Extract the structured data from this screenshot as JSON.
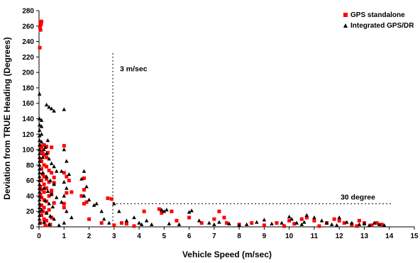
{
  "chart_data": {
    "type": "scatter",
    "xlabel": "Vehicle Speed (m/sec)",
    "ylabel": "Deviation from TRUE Heading (Degrees)",
    "xlim": [
      0,
      15
    ],
    "ylim": [
      0,
      280
    ],
    "xticks": [
      0,
      1,
      2,
      3,
      4,
      5,
      6,
      7,
      8,
      9,
      10,
      11,
      12,
      13,
      14,
      15
    ],
    "yticks": [
      0,
      20,
      40,
      60,
      80,
      100,
      120,
      140,
      160,
      180,
      200,
      220,
      240,
      260,
      280
    ],
    "grid": false,
    "legend_position": "top-right",
    "annotations": [
      {
        "text": "3 m/sec",
        "type": "vertical-line",
        "x": 2.95,
        "y_top": 225
      },
      {
        "text": "30 degree",
        "type": "horizontal-line",
        "y": 30,
        "x_start": 2.95,
        "x_end": 14.1
      }
    ],
    "series": [
      {
        "name": "GPS standalone",
        "marker": "square",
        "color": "#ff0000",
        "points": [
          [
            0.05,
            265
          ],
          [
            0.1,
            266
          ],
          [
            0.08,
            262
          ],
          [
            0.04,
            258
          ],
          [
            0.06,
            255
          ],
          [
            0.03,
            232
          ],
          [
            0.05,
            105
          ],
          [
            0.1,
            103
          ],
          [
            0.2,
            106
          ],
          [
            0.3,
            104
          ],
          [
            0.5,
            103
          ],
          [
            1.0,
            105
          ],
          [
            0.1,
            98
          ],
          [
            0.15,
            95
          ],
          [
            0.2,
            93
          ],
          [
            0.3,
            90
          ],
          [
            0.05,
            88
          ],
          [
            0.1,
            85
          ],
          [
            0.2,
            80
          ],
          [
            0.3,
            78
          ],
          [
            0.1,
            75
          ],
          [
            0.4,
            73
          ],
          [
            0.5,
            70
          ],
          [
            0.15,
            68
          ],
          [
            0.2,
            65
          ],
          [
            0.6,
            64
          ],
          [
            0.3,
            62
          ],
          [
            0.1,
            60
          ],
          [
            0.4,
            58
          ],
          [
            0.2,
            55
          ],
          [
            0.05,
            52
          ],
          [
            0.3,
            50
          ],
          [
            0.1,
            48
          ],
          [
            0.2,
            45
          ],
          [
            0.5,
            47
          ],
          [
            0.05,
            42
          ],
          [
            0.4,
            40
          ],
          [
            0.1,
            38
          ],
          [
            0.2,
            35
          ],
          [
            0.3,
            33
          ],
          [
            0.6,
            31
          ],
          [
            0.1,
            28
          ],
          [
            0.2,
            25
          ],
          [
            0.4,
            22
          ],
          [
            0.15,
            20
          ],
          [
            0.3,
            18
          ],
          [
            0.1,
            15
          ],
          [
            0.5,
            12
          ],
          [
            0.2,
            10
          ],
          [
            0.3,
            8
          ],
          [
            0.05,
            5
          ],
          [
            0.6,
            57
          ],
          [
            0.5,
            43
          ],
          [
            0.35,
            96
          ],
          [
            1.0,
            70
          ],
          [
            1.1,
            65
          ],
          [
            1.2,
            60
          ],
          [
            1.3,
            45
          ],
          [
            1.1,
            44
          ],
          [
            1.0,
            30
          ],
          [
            1.8,
            63
          ],
          [
            1.8,
            48
          ],
          [
            1.7,
            40
          ],
          [
            1.9,
            32
          ],
          [
            1.8,
            30
          ],
          [
            1.0,
            25
          ],
          [
            2.75,
            37
          ],
          [
            2.9,
            36
          ],
          [
            2.0,
            10
          ],
          [
            2.5,
            5
          ],
          [
            3.3,
            5
          ],
          [
            3.5,
            4
          ],
          [
            4.2,
            20
          ],
          [
            4.8,
            23
          ],
          [
            4.9,
            18
          ],
          [
            5.3,
            20
          ],
          [
            5.5,
            8
          ],
          [
            6.0,
            12
          ],
          [
            6.5,
            5
          ],
          [
            7.0,
            10
          ],
          [
            7.2,
            20
          ],
          [
            7.4,
            12
          ],
          [
            7.5,
            5
          ],
          [
            8.0,
            3
          ],
          [
            8.5,
            5
          ],
          [
            9.0,
            2
          ],
          [
            9.5,
            5
          ],
          [
            10.0,
            8
          ],
          [
            10.5,
            10
          ],
          [
            10.7,
            12
          ],
          [
            11.0,
            8
          ],
          [
            11.5,
            5
          ],
          [
            11.8,
            10
          ],
          [
            12.0,
            8
          ],
          [
            12.2,
            5
          ],
          [
            12.5,
            3
          ],
          [
            12.8,
            8
          ],
          [
            13.0,
            5
          ],
          [
            13.3,
            2
          ],
          [
            13.5,
            5
          ],
          [
            13.7,
            3
          ],
          [
            0.25,
            2
          ],
          [
            0.45,
            3
          ],
          [
            3.0,
            2
          ],
          [
            3.8,
            1
          ],
          [
            9.8,
            1
          ],
          [
            11.2,
            1
          ],
          [
            12.7,
            1
          ],
          [
            10.2,
            4
          ]
        ]
      },
      {
        "name": "Integrated GPS/DR",
        "marker": "triangle",
        "color": "#000000",
        "points": [
          [
            0.02,
            172
          ],
          [
            0.3,
            158
          ],
          [
            0.4,
            155
          ],
          [
            0.5,
            153
          ],
          [
            0.6,
            150
          ],
          [
            1.0,
            152
          ],
          [
            0.02,
            140
          ],
          [
            0.02,
            132
          ],
          [
            0.02,
            125
          ],
          [
            0.02,
            118
          ],
          [
            0.02,
            112
          ],
          [
            0.02,
            106
          ],
          [
            0.02,
            100
          ],
          [
            0.02,
            95
          ],
          [
            0.02,
            90
          ],
          [
            0.02,
            85
          ],
          [
            0.02,
            80
          ],
          [
            0.02,
            75
          ],
          [
            0.02,
            70
          ],
          [
            0.02,
            65
          ],
          [
            0.02,
            60
          ],
          [
            0.02,
            55
          ],
          [
            0.02,
            50
          ],
          [
            0.02,
            45
          ],
          [
            0.02,
            40
          ],
          [
            0.02,
            35
          ],
          [
            0.02,
            30
          ],
          [
            0.02,
            25
          ],
          [
            0.02,
            20
          ],
          [
            0.02,
            15
          ],
          [
            0.02,
            10
          ],
          [
            0.02,
            5
          ],
          [
            0.1,
            138
          ],
          [
            0.1,
            130
          ],
          [
            0.1,
            120
          ],
          [
            0.1,
            110
          ],
          [
            0.2,
            100
          ],
          [
            0.3,
            95
          ],
          [
            0.4,
            88
          ],
          [
            0.5,
            82
          ],
          [
            0.6,
            78
          ],
          [
            0.7,
            72
          ],
          [
            0.15,
            70
          ],
          [
            0.3,
            65
          ],
          [
            0.45,
            60
          ],
          [
            0.6,
            55
          ],
          [
            0.2,
            50
          ],
          [
            0.35,
            46
          ],
          [
            0.5,
            42
          ],
          [
            0.7,
            38
          ],
          [
            0.25,
            34
          ],
          [
            0.4,
            30
          ],
          [
            0.55,
            26
          ],
          [
            0.1,
            22
          ],
          [
            0.3,
            18
          ],
          [
            0.45,
            14
          ],
          [
            0.6,
            10
          ],
          [
            0.2,
            6
          ],
          [
            0.4,
            3
          ],
          [
            0.8,
            2
          ],
          [
            1.0,
            100
          ],
          [
            1.1,
            85
          ],
          [
            0.9,
            72
          ],
          [
            1.2,
            68
          ],
          [
            1.0,
            58
          ],
          [
            1.1,
            50
          ],
          [
            1.0,
            40
          ],
          [
            0.9,
            32
          ],
          [
            1.1,
            20
          ],
          [
            1.3,
            12
          ],
          [
            1.0,
            5
          ],
          [
            1.8,
            72
          ],
          [
            1.7,
            62
          ],
          [
            1.9,
            52
          ],
          [
            1.8,
            40
          ],
          [
            2.0,
            35
          ],
          [
            2.2,
            28
          ],
          [
            2.3,
            30
          ],
          [
            2.5,
            20
          ],
          [
            2.6,
            10
          ],
          [
            2.8,
            5
          ],
          [
            3.0,
            30
          ],
          [
            3.2,
            20
          ],
          [
            3.5,
            8
          ],
          [
            3.8,
            12
          ],
          [
            4.0,
            5
          ],
          [
            4.1,
            3
          ],
          [
            4.3,
            8
          ],
          [
            4.5,
            3
          ],
          [
            4.9,
            22
          ],
          [
            5.0,
            20
          ],
          [
            5.1,
            22
          ],
          [
            5.2,
            4
          ],
          [
            5.6,
            3
          ],
          [
            6.0,
            19
          ],
          [
            6.1,
            21
          ],
          [
            6.4,
            8
          ],
          [
            6.8,
            5
          ],
          [
            7.0,
            3
          ],
          [
            7.2,
            6
          ],
          [
            7.6,
            4
          ],
          [
            8.0,
            2
          ],
          [
            8.3,
            3
          ],
          [
            8.7,
            6
          ],
          [
            9.0,
            9
          ],
          [
            9.3,
            4
          ],
          [
            9.7,
            5
          ],
          [
            10.0,
            13
          ],
          [
            10.1,
            10
          ],
          [
            10.3,
            5
          ],
          [
            10.5,
            3
          ],
          [
            10.6,
            6
          ],
          [
            10.7,
            15
          ],
          [
            11.0,
            12
          ],
          [
            11.3,
            8
          ],
          [
            11.5,
            5
          ],
          [
            11.7,
            3
          ],
          [
            11.9,
            2
          ],
          [
            12.0,
            12
          ],
          [
            12.3,
            6
          ],
          [
            12.5,
            5
          ],
          [
            12.8,
            3
          ],
          [
            13.0,
            4
          ],
          [
            13.2,
            2
          ],
          [
            13.4,
            5
          ],
          [
            13.6,
            3
          ],
          [
            13.8,
            2
          ],
          [
            0.25,
            103
          ],
          [
            0.15,
            90
          ],
          [
            0.35,
            112
          ]
        ]
      }
    ]
  }
}
